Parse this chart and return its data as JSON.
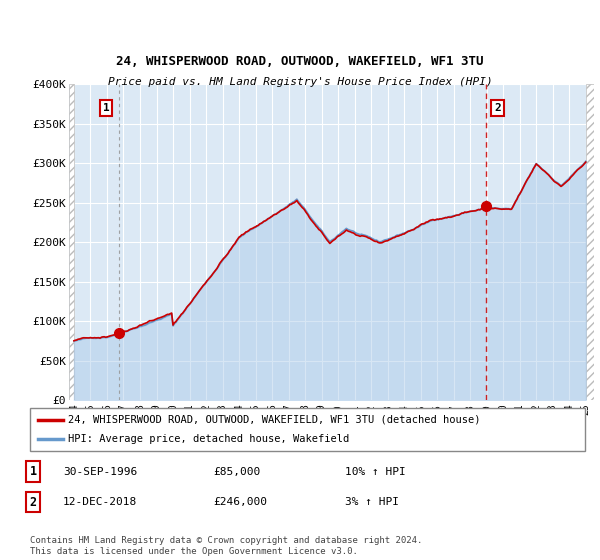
{
  "title_line1": "24, WHISPERWOOD ROAD, OUTWOOD, WAKEFIELD, WF1 3TU",
  "title_line2": "Price paid vs. HM Land Registry's House Price Index (HPI)",
  "ylim": [
    0,
    400000
  ],
  "yticks": [
    0,
    50000,
    100000,
    150000,
    200000,
    250000,
    300000,
    350000,
    400000
  ],
  "ytick_labels": [
    "£0",
    "£50K",
    "£100K",
    "£150K",
    "£200K",
    "£250K",
    "£300K",
    "£350K",
    "£400K"
  ],
  "house_color": "#cc0000",
  "hpi_color": "#6699cc",
  "sale1_x": 1996.75,
  "sale1_y": 85000,
  "sale2_x": 2018.95,
  "sale2_y": 246000,
  "legend_house": "24, WHISPERWOOD ROAD, OUTWOOD, WAKEFIELD, WF1 3TU (detached house)",
  "legend_hpi": "HPI: Average price, detached house, Wakefield",
  "table_rows": [
    {
      "num": "1",
      "date": "30-SEP-1996",
      "price": "£85,000",
      "change": "10% ↑ HPI"
    },
    {
      "num": "2",
      "date": "12-DEC-2018",
      "price": "£246,000",
      "change": "3% ↑ HPI"
    }
  ],
  "footnote": "Contains HM Land Registry data © Crown copyright and database right 2024.\nThis data is licensed under the Open Government Licence v3.0.",
  "xlim_left": 1993.7,
  "xlim_right": 2025.5,
  "hpi_monthly_x": [
    1994.0,
    1994.083,
    1994.167,
    1994.25,
    1994.333,
    1994.417,
    1994.5,
    1994.583,
    1994.667,
    1994.75,
    1994.833,
    1994.917,
    1995.0,
    1995.083,
    1995.167,
    1995.25,
    1995.333,
    1995.417,
    1995.5,
    1995.583,
    1995.667,
    1995.75,
    1995.833,
    1995.917,
    1996.0,
    1996.083,
    1996.167,
    1996.25,
    1996.333,
    1996.417,
    1996.5,
    1996.583,
    1996.667,
    1996.75,
    1996.833,
    1996.917,
    1997.0,
    1997.083,
    1997.167,
    1997.25,
    1997.333,
    1997.417,
    1997.5,
    1997.583,
    1997.667,
    1997.75,
    1997.833,
    1997.917,
    1998.0,
    1998.083,
    1998.167,
    1998.25,
    1998.333,
    1998.417,
    1998.5,
    1998.583,
    1998.667,
    1998.75,
    1998.833,
    1998.917,
    1999.0,
    1999.083,
    1999.167,
    1999.25,
    1999.333,
    1999.417,
    1999.5,
    1999.583,
    1999.667,
    1999.75,
    1999.833,
    1999.917,
    2000.0,
    2000.083,
    2000.167,
    2000.25,
    2000.333,
    2000.417,
    2000.5,
    2000.583,
    2000.667,
    2000.75,
    2000.833,
    2000.917,
    2001.0,
    2001.083,
    2001.167,
    2001.25,
    2001.333,
    2001.417,
    2001.5,
    2001.583,
    2001.667,
    2001.75,
    2001.833,
    2001.917,
    2002.0,
    2002.083,
    2002.167,
    2002.25,
    2002.333,
    2002.417,
    2002.5,
    2002.583,
    2002.667,
    2002.75,
    2002.833,
    2002.917,
    2003.0,
    2003.083,
    2003.167,
    2003.25,
    2003.333,
    2003.417,
    2003.5,
    2003.583,
    2003.667,
    2003.75,
    2003.833,
    2003.917,
    2004.0,
    2004.083,
    2004.167,
    2004.25,
    2004.333,
    2004.417,
    2004.5,
    2004.583,
    2004.667,
    2004.75,
    2004.833,
    2004.917,
    2005.0,
    2005.083,
    2005.167,
    2005.25,
    2005.333,
    2005.417,
    2005.5,
    2005.583,
    2005.667,
    2005.75,
    2005.833,
    2005.917,
    2006.0,
    2006.083,
    2006.167,
    2006.25,
    2006.333,
    2006.417,
    2006.5,
    2006.583,
    2006.667,
    2006.75,
    2006.833,
    2006.917,
    2007.0,
    2007.083,
    2007.167,
    2007.25,
    2007.333,
    2007.417,
    2007.5,
    2007.583,
    2007.667,
    2007.75,
    2007.833,
    2007.917,
    2008.0,
    2008.083,
    2008.167,
    2008.25,
    2008.333,
    2008.417,
    2008.5,
    2008.583,
    2008.667,
    2008.75,
    2008.833,
    2008.917,
    2009.0,
    2009.083,
    2009.167,
    2009.25,
    2009.333,
    2009.417,
    2009.5,
    2009.583,
    2009.667,
    2009.75,
    2009.833,
    2009.917,
    2010.0,
    2010.083,
    2010.167,
    2010.25,
    2010.333,
    2010.417,
    2010.5,
    2010.583,
    2010.667,
    2010.75,
    2010.833,
    2010.917,
    2011.0,
    2011.083,
    2011.167,
    2011.25,
    2011.333,
    2011.417,
    2011.5,
    2011.583,
    2011.667,
    2011.75,
    2011.833,
    2011.917,
    2012.0,
    2012.083,
    2012.167,
    2012.25,
    2012.333,
    2012.417,
    2012.5,
    2012.583,
    2012.667,
    2012.75,
    2012.833,
    2012.917,
    2013.0,
    2013.083,
    2013.167,
    2013.25,
    2013.333,
    2013.417,
    2013.5,
    2013.583,
    2013.667,
    2013.75,
    2013.833,
    2013.917,
    2014.0,
    2014.083,
    2014.167,
    2014.25,
    2014.333,
    2014.417,
    2014.5,
    2014.583,
    2014.667,
    2014.75,
    2014.833,
    2014.917,
    2015.0,
    2015.083,
    2015.167,
    2015.25,
    2015.333,
    2015.417,
    2015.5,
    2015.583,
    2015.667,
    2015.75,
    2015.833,
    2015.917,
    2016.0,
    2016.083,
    2016.167,
    2016.25,
    2016.333,
    2016.417,
    2016.5,
    2016.583,
    2016.667,
    2016.75,
    2016.833,
    2016.917,
    2017.0,
    2017.083,
    2017.167,
    2017.25,
    2017.333,
    2017.417,
    2017.5,
    2017.583,
    2017.667,
    2017.75,
    2017.833,
    2017.917,
    2018.0,
    2018.083,
    2018.167,
    2018.25,
    2018.333,
    2018.417,
    2018.5,
    2018.583,
    2018.667,
    2018.75,
    2018.833,
    2018.917,
    2019.0,
    2019.083,
    2019.167,
    2019.25,
    2019.333,
    2019.417,
    2019.5,
    2019.583,
    2019.667,
    2019.75,
    2019.833,
    2019.917,
    2020.0,
    2020.083,
    2020.167,
    2020.25,
    2020.333,
    2020.417,
    2020.5,
    2020.583,
    2020.667,
    2020.75,
    2020.833,
    2020.917,
    2021.0,
    2021.083,
    2021.167,
    2021.25,
    2021.333,
    2021.417,
    2021.5,
    2021.583,
    2021.667,
    2021.75,
    2021.833,
    2021.917,
    2022.0,
    2022.083,
    2022.167,
    2022.25,
    2022.333,
    2022.417,
    2022.5,
    2022.583,
    2022.667,
    2022.75,
    2022.833,
    2022.917,
    2023.0,
    2023.083,
    2023.167,
    2023.25,
    2023.333,
    2023.417,
    2023.5,
    2023.583,
    2023.667,
    2023.75,
    2023.833,
    2023.917,
    2024.0,
    2024.083,
    2024.167,
    2024.25,
    2024.333,
    2024.417,
    2024.5,
    2024.583,
    2024.667,
    2024.75,
    2024.833,
    2024.917,
    2025.0
  ]
}
